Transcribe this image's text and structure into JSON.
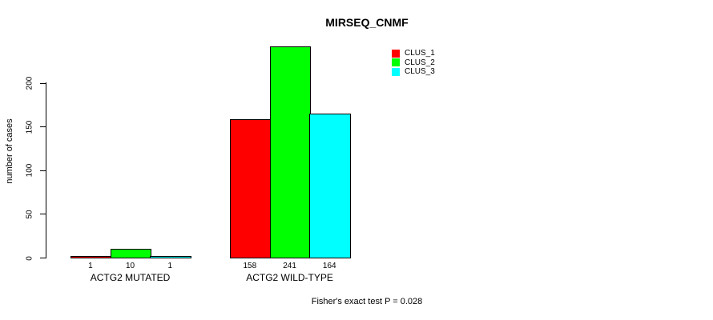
{
  "title": "MIRSEQ_CNMF",
  "ylabel": "number of cases",
  "annotation": "Fisher's exact test P = 0.028",
  "chart_data": {
    "type": "bar",
    "title": "MIRSEQ_CNMF",
    "ylabel": "number of cases",
    "xlabel": "",
    "groups": [
      "ACTG2 MUTATED",
      "ACTG2 WILD-TYPE"
    ],
    "series": [
      {
        "name": "CLUS_1",
        "color": "#ff0000",
        "values": [
          1,
          158
        ]
      },
      {
        "name": "CLUS_2",
        "color": "#00ff00",
        "values": [
          10,
          241
        ]
      },
      {
        "name": "CLUS_3",
        "color": "#00ffff",
        "values": [
          1,
          164
        ]
      }
    ],
    "bar_value_labels": [
      [
        "1",
        "10",
        "1"
      ],
      [
        "158",
        "241",
        "164"
      ]
    ],
    "yticks": [
      0,
      50,
      100,
      150,
      200
    ],
    "ylim": [
      0,
      245
    ],
    "grid": false,
    "legend_position": "top-right",
    "legend_entries": [
      "CLUS_1",
      "CLUS_2",
      "CLUS_3"
    ],
    "footer": "Fisher's exact test P = 0.028"
  }
}
